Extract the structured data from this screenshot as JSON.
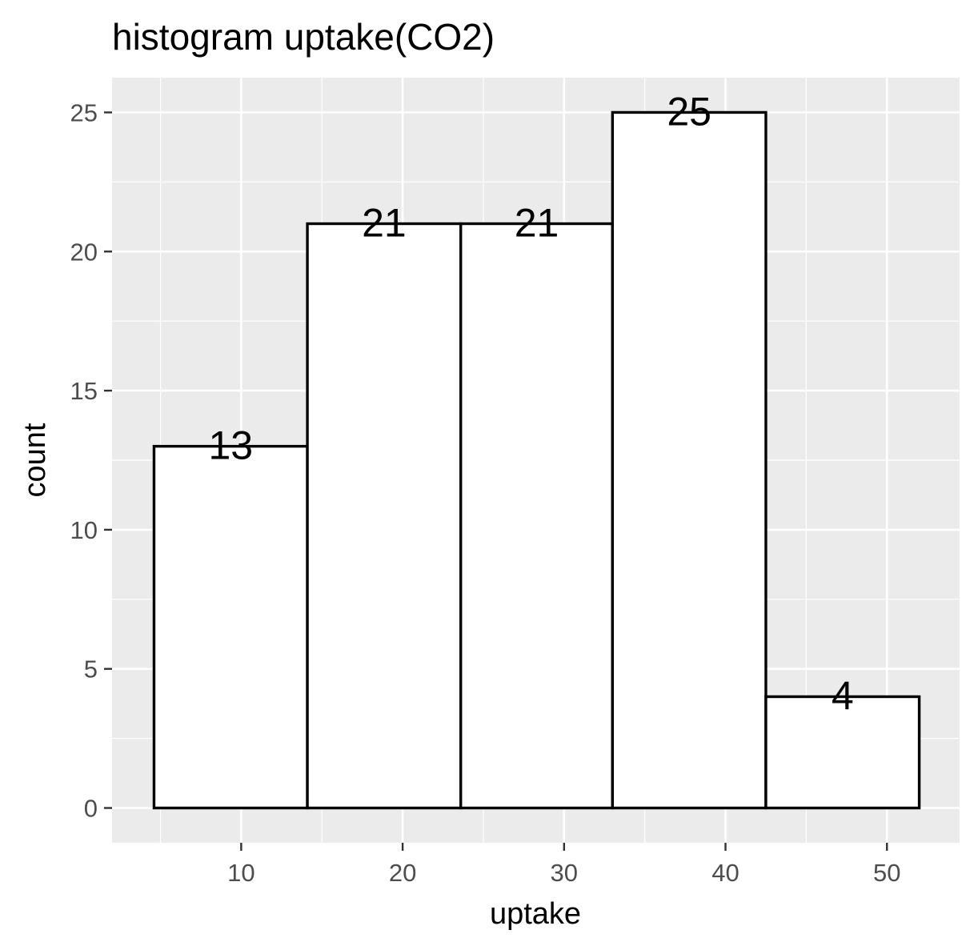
{
  "chart_data": {
    "type": "bar",
    "title": "histogram uptake(CO2)",
    "xlabel": "uptake",
    "ylabel": "count",
    "bins": [
      {
        "x0": 4.6,
        "x1": 14.1,
        "count": 13
      },
      {
        "x0": 14.1,
        "x1": 23.6,
        "count": 21
      },
      {
        "x0": 23.6,
        "x1": 33.0,
        "count": 21
      },
      {
        "x0": 33.0,
        "x1": 42.5,
        "count": 25
      },
      {
        "x0": 42.5,
        "x1": 52.0,
        "count": 4
      }
    ],
    "xlim": [
      2.0,
      54.5
    ],
    "ylim": [
      -1.25,
      26.25
    ],
    "x_ticks": [
      10,
      20,
      30,
      40,
      50
    ],
    "y_ticks": [
      0,
      5,
      10,
      15,
      20,
      25
    ],
    "x_tick_labels": [
      "10",
      "20",
      "30",
      "40",
      "50"
    ],
    "y_tick_labels": [
      "0",
      "5",
      "10",
      "15",
      "20",
      "25"
    ],
    "grid": true,
    "colors": {
      "panel_background": "#ebebeb",
      "grid_major": "#ffffff",
      "bar_fill": "#ffffff",
      "bar_outline": "#000000"
    }
  }
}
